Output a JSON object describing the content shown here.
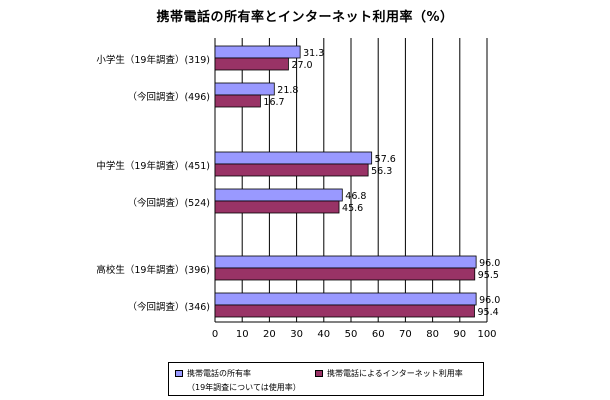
{
  "chart_data": {
    "type": "bar",
    "orientation": "horizontal",
    "title": "携帯電話の所有率とインターネット利用率（%）",
    "categories": [
      "小学生（19年調査）(319)",
      "（今回調査）(496)",
      "中学生（19年調査）(451)",
      "（今回調査）(524)",
      "高校生（19年調査）(396)",
      "（今回調査）(346)"
    ],
    "series": [
      {
        "name": "携帯電話の所有率",
        "values": [
          31.3,
          21.8,
          57.6,
          46.8,
          96.0,
          96.0
        ],
        "value_labels": [
          "31.3",
          "21.8",
          "57.6",
          "46.8",
          "96.0",
          "96.0"
        ],
        "color": "#9999ff"
      },
      {
        "name": "携帯電話によるインターネット利用率",
        "values": [
          27.0,
          16.7,
          56.3,
          45.6,
          95.5,
          95.4
        ],
        "value_labels": [
          "27.0",
          "16.7",
          "56.3",
          "45.6",
          "95.5",
          "95.4"
        ],
        "color": "#993366"
      }
    ],
    "xlim": [
      0,
      100
    ],
    "x_ticks": [
      "0",
      "10",
      "20",
      "30",
      "40",
      "50",
      "60",
      "70",
      "80",
      "90",
      "100"
    ],
    "grid": true,
    "legend_position": "bottom",
    "legend_note": "（19年調査については使用率）"
  },
  "colors": {
    "series1": "#9999ff",
    "series2": "#993366",
    "grid": "#000000"
  }
}
